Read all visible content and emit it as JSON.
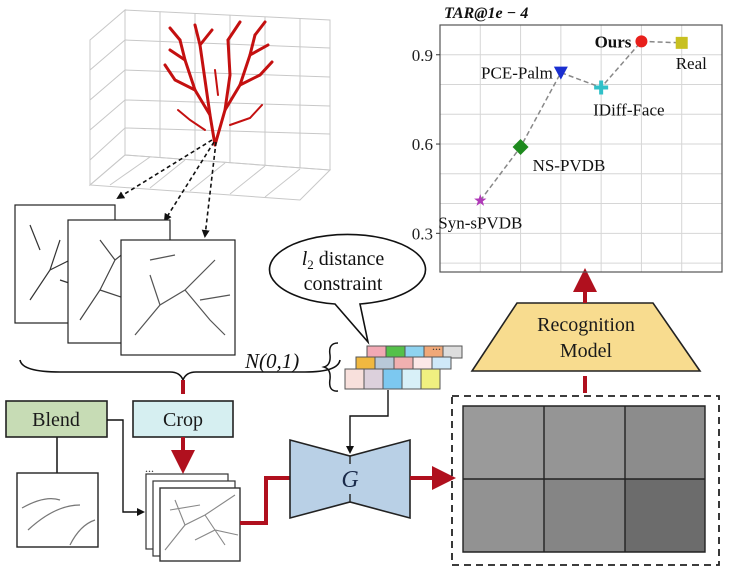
{
  "labels": {
    "blend": "Blend",
    "crop": "Crop",
    "generator": "G",
    "recognition_line1": "Recognition",
    "recognition_line2": "Model",
    "bubble_line1_var": "l",
    "bubble_line1_sub": "2",
    "bubble_line1_rest": " distance",
    "bubble_line2": "constraint",
    "noise": "N(0,1)",
    "ellipsis": "..."
  },
  "colors": {
    "arrow_red": "#b0101e",
    "blend_fill": "#c7dcb5",
    "crop_fill": "#d6eff1",
    "generator_fill": "#b9d0e6",
    "recognition_fill": "#f8dc8f",
    "tree_red": "#c41010"
  },
  "chart_data": {
    "type": "scatter",
    "title": "TAR@1e − 4",
    "ylim": [
      0.17,
      1.0
    ],
    "xlim": [
      0,
      7
    ],
    "yticks": [
      0.3,
      0.6,
      0.9
    ],
    "ytick_labels": [
      "0.3",
      "0.6",
      "0.9"
    ],
    "grid": true,
    "connected": "dashed gray line",
    "points": [
      {
        "label": "Syn-sPVDB",
        "x": 1,
        "y": 0.41,
        "marker": "star",
        "color": "#b03ab8",
        "bold": false
      },
      {
        "label": "NS-PVDB",
        "x": 2,
        "y": 0.59,
        "marker": "diamond",
        "color": "#1e8a1e",
        "bold": false
      },
      {
        "label": "PCE-Palm",
        "x": 3,
        "y": 0.84,
        "marker": "triangle-down",
        "color": "#1a2fd0",
        "bold": false
      },
      {
        "label": "IDiff-Face",
        "x": 4,
        "y": 0.79,
        "marker": "plus",
        "color": "#30c0c8",
        "bold": false
      },
      {
        "label": "Ours",
        "x": 5,
        "y": 0.945,
        "marker": "circle",
        "color": "#e8201c",
        "bold": true
      },
      {
        "label": "Real",
        "x": 6,
        "y": 0.94,
        "marker": "square",
        "color": "#c8c020",
        "bold": false
      }
    ]
  }
}
